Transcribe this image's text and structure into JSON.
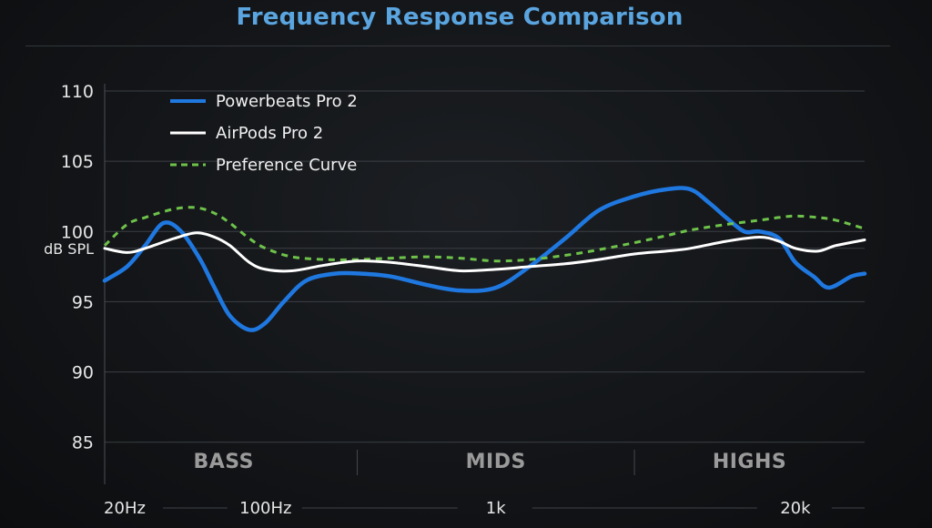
{
  "chart_data": {
    "type": "line",
    "title": "Frequency Response Comparison",
    "ylabel": "dB SPL",
    "xlabel": "",
    "ylim": [
      82,
      110
    ],
    "yticks": [
      85,
      90,
      95,
      100,
      105,
      110
    ],
    "xscale": "log",
    "xlim": [
      20,
      40000
    ],
    "xtick_labels": [
      {
        "value": 20,
        "label": "20Hz"
      },
      {
        "value": 100,
        "label": "100Hz"
      },
      {
        "value": 1000,
        "label": "1k"
      },
      {
        "value": 20000,
        "label": "20k"
      }
    ],
    "regions": [
      {
        "label": "BASS",
        "from": 20,
        "to": 250
      },
      {
        "label": "MIDS",
        "from": 250,
        "to": 4000
      },
      {
        "label": "HIGHS",
        "from": 4000,
        "to": 40000
      }
    ],
    "series": [
      {
        "name": "Powerbeats Pro 2",
        "color": "#1f78e0",
        "style": "solid",
        "x": [
          20,
          25,
          30,
          36,
          43,
          52,
          60,
          70,
          85,
          100,
          120,
          150,
          200,
          260,
          350,
          500,
          700,
          1000,
          1400,
          2000,
          2800,
          4000,
          5500,
          7000,
          8500,
          10000,
          12000,
          14000,
          17000,
          20000,
          24000,
          28000,
          35000,
          40000
        ],
        "y": [
          96.5,
          97.5,
          99.0,
          100.6,
          100.0,
          98.0,
          96.0,
          94.0,
          93.0,
          93.5,
          95.0,
          96.5,
          97.0,
          97.0,
          96.8,
          96.2,
          95.8,
          96.0,
          97.5,
          99.5,
          101.5,
          102.5,
          103.0,
          103.0,
          102.0,
          101.0,
          100.0,
          100.0,
          99.5,
          97.8,
          96.8,
          96.0,
          96.8,
          97.0
        ]
      },
      {
        "name": "AirPods Pro 2",
        "color": "#ffffff",
        "style": "solid",
        "x": [
          20,
          25,
          30,
          40,
          50,
          60,
          70,
          85,
          100,
          130,
          180,
          250,
          350,
          500,
          700,
          1000,
          1400,
          2000,
          2800,
          4000,
          5500,
          7000,
          10000,
          14000,
          17000,
          20000,
          25000,
          30000,
          40000
        ],
        "y": [
          98.8,
          98.5,
          98.8,
          99.5,
          99.9,
          99.6,
          99.0,
          97.8,
          97.3,
          97.2,
          97.6,
          97.9,
          97.8,
          97.5,
          97.2,
          97.3,
          97.5,
          97.7,
          98.0,
          98.4,
          98.6,
          98.8,
          99.3,
          99.6,
          99.3,
          98.8,
          98.6,
          99.0,
          99.4
        ]
      },
      {
        "name": "Preference Curve",
        "color": "#6ec24a",
        "style": "dashed",
        "x": [
          20,
          25,
          30,
          40,
          50,
          60,
          70,
          85,
          100,
          130,
          180,
          250,
          350,
          500,
          700,
          1000,
          1400,
          2000,
          2800,
          4000,
          5500,
          7000,
          10000,
          14000,
          17000,
          20000,
          25000,
          30000,
          40000
        ],
        "y": [
          99.0,
          100.5,
          101.0,
          101.6,
          101.7,
          101.3,
          100.6,
          99.5,
          98.8,
          98.2,
          98.0,
          98.0,
          98.1,
          98.2,
          98.1,
          97.9,
          98.0,
          98.3,
          98.7,
          99.2,
          99.7,
          100.1,
          100.5,
          100.8,
          101.0,
          101.1,
          101.0,
          100.8,
          100.2
        ]
      }
    ],
    "legend_position": "top-left"
  }
}
